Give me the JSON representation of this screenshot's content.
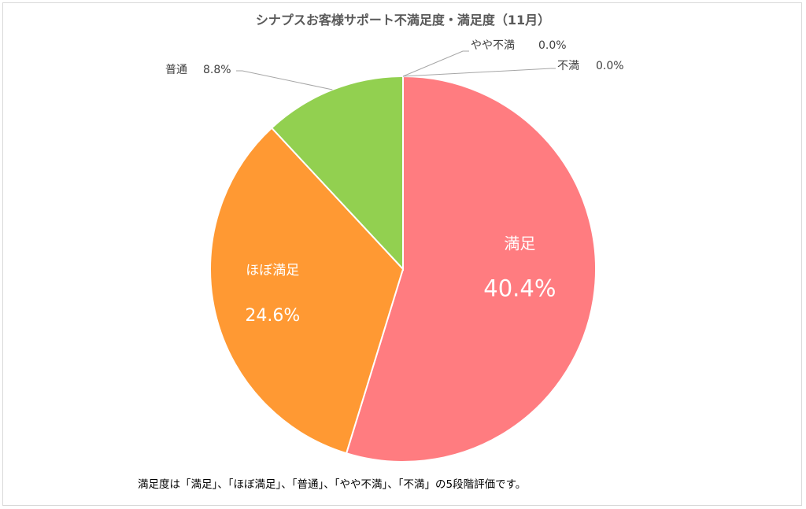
{
  "chart_data": {
    "type": "pie",
    "title": "シナプスお客様サポート不満足度・満足度（11月）",
    "slices": [
      {
        "label": "満足",
        "value": 40.4,
        "value_text": "40.4%",
        "color": "#ff7c80"
      },
      {
        "label": "ほぼ満足",
        "value": 24.6,
        "value_text": "24.6%",
        "color": "#ff9933"
      },
      {
        "label": "普通",
        "value": 8.8,
        "value_text": "8.8%",
        "color": "#92d050"
      },
      {
        "label": "やや不満",
        "value": 0.0,
        "value_text": "0.0%",
        "color": "#ffc000"
      },
      {
        "label": "不満",
        "value": 0.0,
        "value_text": "0.0%",
        "color": "#bfbfbf"
      }
    ]
  },
  "footnote": "満足度は「満足」、「ほぼ満足」、「普通」、「やや不満」、「不満」の5段階評価です。"
}
